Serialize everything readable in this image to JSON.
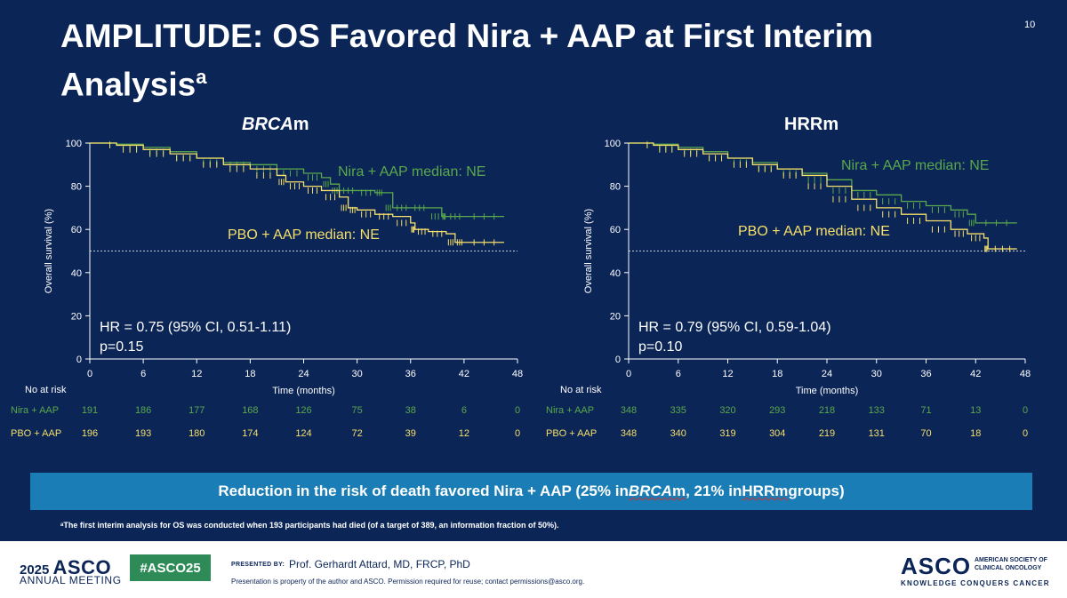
{
  "slide": {
    "title_main": "AMPLITUDE: OS Favored Nira + AAP at First Interim Analysis",
    "title_superscript": "a",
    "page_number": "10",
    "banner": {
      "prefix": "Reduction in the risk of death favored Nira + AAP  (25% in ",
      "brca_italic": "BRCA",
      "brca_rest": "m",
      "middle": ", 21% in ",
      "hrrm": "HRRm",
      "suffix": " groups)"
    },
    "footnote": "ᵃThe first interim analysis for OS was conducted when 193 participants had died (of a target of 389, an information fraction of 50%).",
    "colors": {
      "background": "#0b2557",
      "nira": "#5aa84a",
      "pbo": "#f6df6a",
      "banner": "#1a7db5"
    }
  },
  "chart_data": [
    {
      "type": "line",
      "title_italic": "BRCA",
      "title_rest": "m",
      "xlabel": "Time (months)",
      "ylabel": "Overall survival (%)",
      "xlim": [
        0,
        48
      ],
      "ylim": [
        0,
        100
      ],
      "xticks": [
        0,
        6,
        12,
        18,
        24,
        30,
        36,
        42,
        48
      ],
      "yticks": [
        0,
        20,
        40,
        60,
        80,
        100
      ],
      "reference_line": 50,
      "hr_text": "HR = 0.75 (95% CI, 0.51-1.11)",
      "p_text": "p=0.15",
      "series": [
        {
          "name": "Nira + AAP",
          "label": "Nira + AAP median: NE",
          "color": "#5aa84a",
          "x": [
            0,
            3,
            6,
            9,
            12,
            15,
            18,
            21,
            24,
            26,
            27,
            28,
            30,
            32,
            33,
            34,
            36,
            38,
            39.5,
            40,
            42,
            46.5
          ],
          "y": [
            100,
            99.5,
            98,
            96,
            93,
            91,
            90,
            88,
            86,
            84,
            81,
            78,
            78,
            77,
            77,
            70,
            70,
            70,
            66,
            66,
            66,
            66
          ]
        },
        {
          "name": "PBO + AAP",
          "label": "PBO + AAP median: NE",
          "color": "#f6df6a",
          "x": [
            0,
            3,
            6,
            9,
            12,
            15,
            18,
            21,
            22,
            24,
            26,
            28,
            29,
            30,
            32,
            34,
            36,
            36.5,
            38,
            40,
            41,
            42,
            46.5
          ],
          "y": [
            100,
            99,
            97,
            95,
            93,
            90,
            88,
            85,
            82,
            80,
            78,
            75,
            70,
            69,
            67,
            66,
            63,
            60,
            59,
            58,
            54,
            54,
            54
          ]
        }
      ],
      "risk_table": {
        "header": "No at risk",
        "times": [
          0,
          6,
          12,
          18,
          24,
          30,
          36,
          42,
          48
        ],
        "rows": [
          {
            "label": "Nira + AAP",
            "color": "#5aa84a",
            "values": [
              "191",
              "186",
              "177",
              "168",
              "126",
              "75",
              "38",
              "6",
              "0"
            ]
          },
          {
            "label": "PBO + AAP",
            "color": "#f6df6a",
            "values": [
              "196",
              "193",
              "180",
              "174",
              "124",
              "72",
              "39",
              "12",
              "0"
            ]
          }
        ]
      }
    },
    {
      "type": "line",
      "title_italic": "",
      "title_rest": "HRRm",
      "xlabel": "Time (months)",
      "ylabel": "Overall survival (%)",
      "xlim": [
        0,
        48
      ],
      "ylim": [
        0,
        100
      ],
      "xticks": [
        0,
        6,
        12,
        18,
        24,
        30,
        36,
        42,
        48
      ],
      "yticks": [
        0,
        20,
        40,
        60,
        80,
        100
      ],
      "reference_line": 50,
      "hr_text": "HR = 0.79 (95% CI, 0.59-1.04)",
      "p_text": "p=0.10",
      "series": [
        {
          "name": "Nira + AAP",
          "label": "Nira + AAP median: NE",
          "color": "#5aa84a",
          "x": [
            0,
            3,
            6,
            9,
            12,
            15,
            18,
            21,
            24,
            27,
            30,
            33,
            36,
            39,
            41,
            42,
            47
          ],
          "y": [
            100,
            99.5,
            98,
            96,
            93,
            91,
            88,
            86,
            83,
            78,
            76,
            73,
            71,
            69,
            67,
            63,
            63
          ]
        },
        {
          "name": "PBO + AAP",
          "label": "PBO + AAP median: NE",
          "color": "#f6df6a",
          "x": [
            0,
            3,
            6,
            9,
            12,
            15,
            18,
            21,
            24,
            27,
            30,
            33,
            36,
            39,
            41,
            43,
            43.5,
            47
          ],
          "y": [
            100,
            99,
            97,
            95,
            93,
            90,
            88,
            85,
            80,
            74,
            70,
            67,
            64,
            60,
            58,
            56,
            51,
            51
          ]
        }
      ],
      "risk_table": {
        "header": "No at risk",
        "times": [
          0,
          6,
          12,
          18,
          24,
          30,
          36,
          42,
          48
        ],
        "rows": [
          {
            "label": "Nira + AAP",
            "color": "#5aa84a",
            "values": [
              "348",
              "335",
              "320",
              "293",
              "218",
              "133",
              "71",
              "13",
              "0"
            ]
          },
          {
            "label": "PBO + AAP",
            "color": "#f6df6a",
            "values": [
              "348",
              "340",
              "319",
              "304",
              "219",
              "131",
              "70",
              "18",
              "0"
            ]
          }
        ]
      }
    }
  ],
  "footer": {
    "year": "2025",
    "asco": "ASCO",
    "annual_meeting": "ANNUAL MEETING",
    "hashtag": "#ASCO25",
    "presented_by": "PRESENTED BY:",
    "presenter": "Prof. Gerhardt Attard, MD, FRCP, PhD",
    "note": "Presentation is property of the author and ASCO. Permission required for reuse; contact permissions@asco.org.",
    "logo": "ASCO",
    "society_line1": "AMERICAN SOCIETY OF",
    "society_line2": "CLINICAL ONCOLOGY",
    "tagline": "KNOWLEDGE CONQUERS CANCER"
  }
}
